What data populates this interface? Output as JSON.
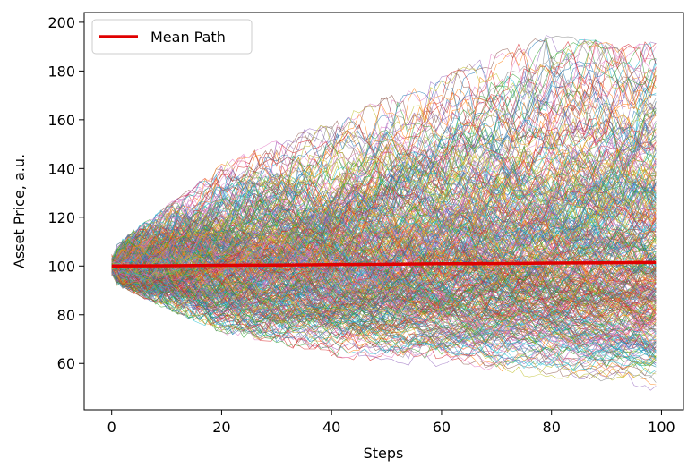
{
  "chart_data": {
    "type": "line",
    "title": "",
    "xlabel": "Steps",
    "ylabel": "Asset Price, a.u.",
    "xlim": [
      -5,
      104
    ],
    "ylim": [
      41,
      204
    ],
    "xticks": [
      0,
      20,
      40,
      60,
      80,
      100
    ],
    "yticks": [
      60,
      80,
      100,
      120,
      140,
      160,
      180,
      200
    ],
    "grid": false,
    "legend": {
      "placement": "top-left",
      "entries": [
        "Mean Path"
      ]
    },
    "series": [
      {
        "name": "Mean Path",
        "color": "#e00000",
        "x": [
          0,
          10,
          20,
          30,
          40,
          50,
          60,
          70,
          80,
          90,
          99
        ],
        "y": [
          100,
          100.1,
          100.3,
          100.4,
          100.6,
          100.7,
          100.9,
          101.0,
          101.2,
          101.3,
          101.5
        ]
      }
    ],
    "simulated_paths": {
      "steps": 100,
      "start_value": 100,
      "envelope": {
        "x": [
          0,
          10,
          20,
          30,
          40,
          50,
          60,
          70,
          80,
          90,
          99
        ],
        "upper": [
          108,
          125,
          142,
          152,
          160,
          170,
          178,
          188,
          196,
          192,
          192
        ],
        "lower": [
          93,
          82,
          72,
          68,
          62,
          60,
          58,
          55,
          54,
          50,
          48
        ]
      },
      "palette": [
        "#1f77b4",
        "#ff7f0e",
        "#2ca02c",
        "#d62728",
        "#9467bd",
        "#8c564b",
        "#e377c2",
        "#7f7f7f",
        "#bcbd22",
        "#17becf"
      ]
    }
  }
}
